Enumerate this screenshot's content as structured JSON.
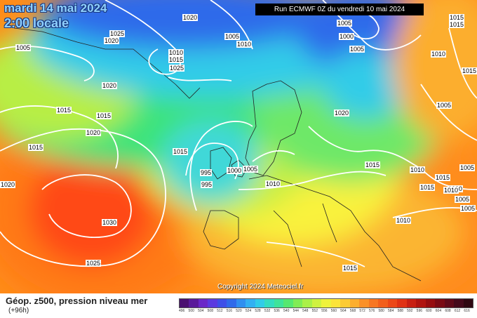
{
  "header": {
    "date": "mardi 14 mai 2024",
    "time": "2:00 locale",
    "run_info": "Run ECMWF 0Z du vendredi 10 mai 2024"
  },
  "map": {
    "copyright": "Copyright 2024 Meteociel.fr",
    "isobar_labels": [
      "1020",
      "1025",
      "1020",
      "1005",
      "1005",
      "1010",
      "1010",
      "1015",
      "1025",
      "1005",
      "1000",
      "1005",
      "1015",
      "1010",
      "1015",
      "1020",
      "1020",
      "1020",
      "1015",
      "1015",
      "1015",
      "1020",
      "1015",
      "1015",
      "995",
      "995",
      "1000",
      "1005",
      "1010",
      "1020",
      "1010",
      "1015",
      "1015",
      "1010",
      "1005",
      "1005",
      "1010",
      "1005",
      "1005",
      "1030",
      "1025",
      "1015",
      "1015",
      "1005"
    ],
    "high_letter": "",
    "colors": {
      "deep_blue": "#1a3fd8",
      "cyan": "#22d6ff",
      "green": "#3ee37a",
      "yellow": "#f9f23e",
      "orange": "#ff8c1a",
      "red": "#ff3b12"
    }
  },
  "legend": {
    "title": "Géop. z500, pression niveau mer",
    "subtitle": "(+96h)",
    "scale_values": [
      "496",
      "500",
      "504",
      "508",
      "512",
      "516",
      "520",
      "524",
      "528",
      "532",
      "536",
      "540",
      "544",
      "548",
      "552",
      "556",
      "560",
      "564",
      "568",
      "572",
      "576",
      "580",
      "584",
      "588",
      "592",
      "596",
      "600",
      "604",
      "608",
      "612",
      "616"
    ],
    "scale_colors": [
      "#4a0f70",
      "#5a1a9a",
      "#6a27c8",
      "#5a3ae0",
      "#3d4fe8",
      "#2f6aea",
      "#2f8ff0",
      "#32b0f2",
      "#30cce8",
      "#33dcc0",
      "#3ee39a",
      "#55e870",
      "#80ec55",
      "#aaf048",
      "#cff240",
      "#eef23c",
      "#fbe43a",
      "#fccb34",
      "#fcae2e",
      "#fb9028",
      "#f77622",
      "#f25f1c",
      "#ec4818",
      "#e03214",
      "#c81f12",
      "#b01410",
      "#960d10",
      "#7a0a14",
      "#5f0a1a",
      "#450a1c",
      "#2f0812"
    ]
  }
}
